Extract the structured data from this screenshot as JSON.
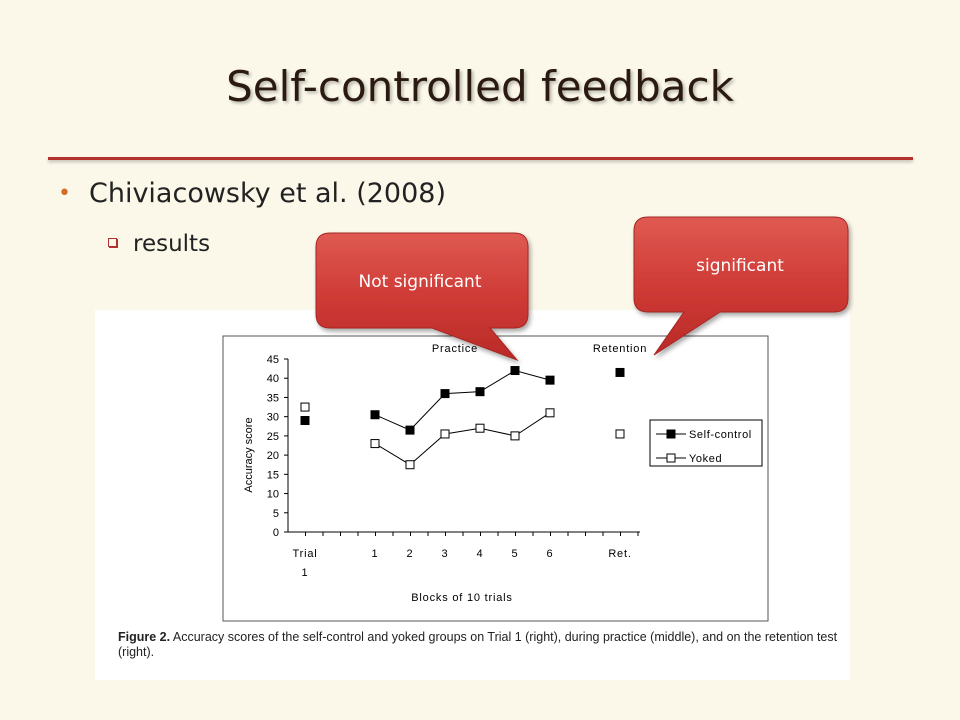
{
  "slide": {
    "title": "Self-controlled feedback",
    "bullet": "Chiviacowsky et al. (2008)",
    "sub_bullet": "results"
  },
  "callouts": {
    "left": "Not significant",
    "right": "significant"
  },
  "colors": {
    "background": "#fbf8ea",
    "accent": "#b5312d",
    "callout_fill": "#cf3b36"
  },
  "caption": {
    "label": "Figure 2.",
    "text": " Accuracy scores of the self-control and yoked groups on Trial 1 (right), during practice (middle), and on the retention test (right)."
  },
  "chart_data": {
    "type": "line",
    "ylabel": "Accuracy score",
    "xlabel": "Blocks of 10 trials",
    "ylim": [
      0,
      45
    ],
    "yticks": [
      0,
      5,
      10,
      15,
      20,
      25,
      30,
      35,
      40,
      45
    ],
    "section_labels": [
      "Practice",
      "Retention"
    ],
    "x_labels": [
      "Trial\n1",
      "1",
      "2",
      "3",
      "4",
      "5",
      "6",
      "Ret."
    ],
    "legend_position": "right",
    "series": [
      {
        "name": "Self-control",
        "marker": "filled-square",
        "trial1": 29,
        "practice": [
          30.5,
          26.5,
          36,
          36.5,
          42,
          39.5
        ],
        "retention": 41.5
      },
      {
        "name": "Yoked",
        "marker": "open-square",
        "trial1": 32.5,
        "practice": [
          23,
          17.5,
          25.5,
          27,
          25,
          31
        ],
        "retention": 25.5
      }
    ]
  }
}
